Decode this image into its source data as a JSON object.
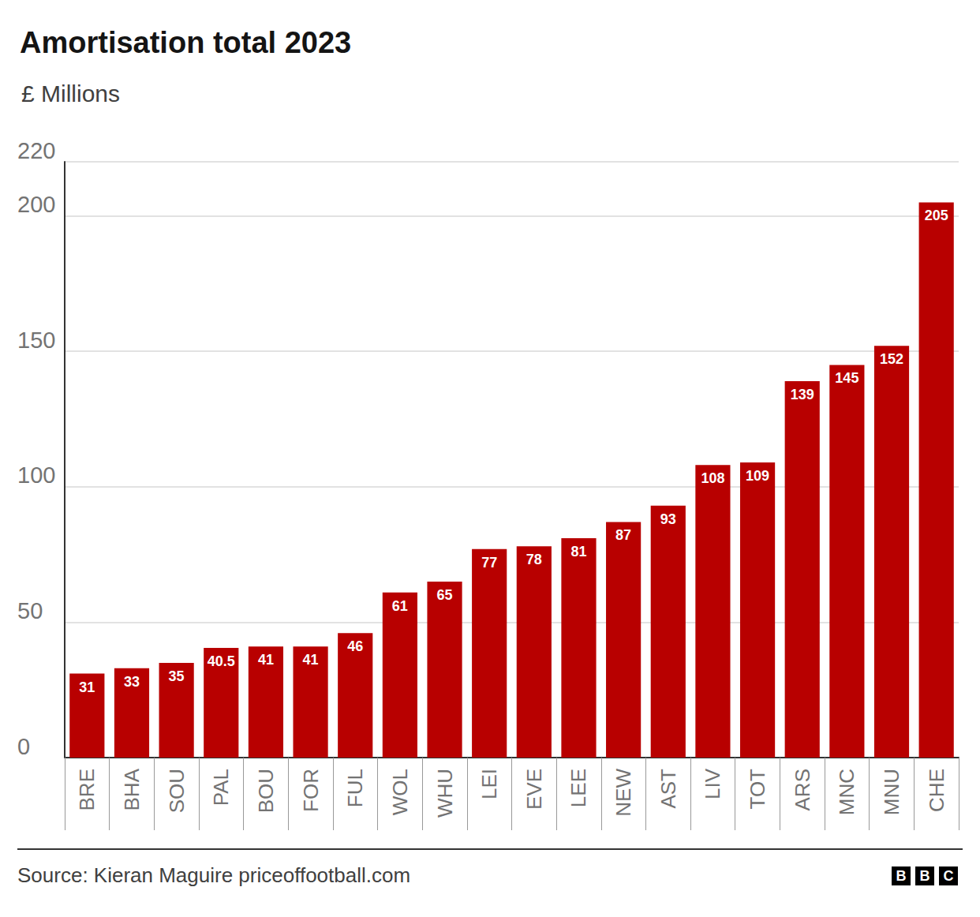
{
  "chart_data": {
    "type": "bar",
    "title": "Amortisation total 2023",
    "subtitle": "£ Millions",
    "categories": [
      "BRE",
      "BHA",
      "SOU",
      "PAL",
      "BOU",
      "FOR",
      "FUL",
      "WOL",
      "WHU",
      "LEI",
      "EVE",
      "LEE",
      "NEW",
      "AST",
      "LIV",
      "TOT",
      "ARS",
      "MNC",
      "MNU",
      "CHE"
    ],
    "values": [
      31,
      33,
      35,
      40.5,
      41,
      41,
      46,
      61,
      65,
      77,
      78,
      81,
      87,
      93,
      108,
      109,
      139,
      145,
      152,
      205
    ],
    "color": "#b80000",
    "ylim": [
      0,
      220
    ],
    "yticks": [
      0,
      50,
      100,
      150,
      200
    ],
    "grid": true,
    "data_labels": true,
    "source": "Source: Kieran Maguire priceoffootball.com",
    "logo": "BBC"
  }
}
